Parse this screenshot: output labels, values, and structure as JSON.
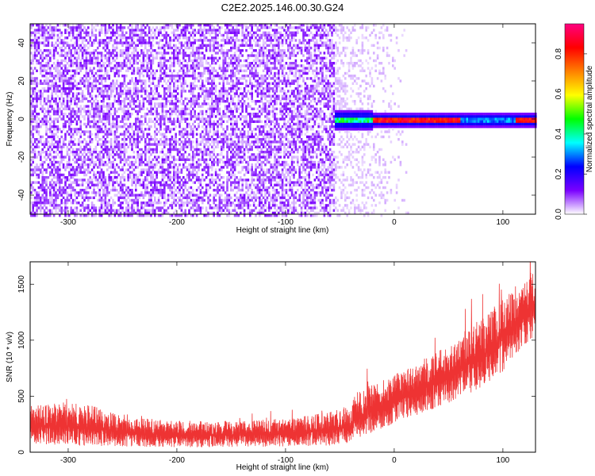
{
  "title": "C2E2.2025.146.00.30.G24",
  "chart_data": [
    {
      "type": "heatmap",
      "xlabel": "Height of straight line (km)",
      "ylabel": "Frequency (Hz)",
      "xlim": [
        -335,
        130
      ],
      "ylim": [
        -50,
        50
      ],
      "xticks": [
        -300,
        -200,
        -100,
        0,
        100
      ],
      "yticks": [
        -40,
        -20,
        0,
        20,
        40
      ],
      "colorbar": {
        "label": "Normalized spectral amplitude",
        "range": [
          0.0,
          0.95
        ],
        "ticks": [
          0.0,
          0.2,
          0.4,
          0.6,
          0.8
        ],
        "tick_labels": [
          "0.0",
          "0.2",
          "0.4",
          "0.6",
          "0.8"
        ],
        "colormap": [
          "#ffffff",
          "#7a00ff",
          "#0000ff",
          "#00ffff",
          "#00ff00",
          "#ffff00",
          "#ff8000",
          "#ff0000",
          "#ff0080"
        ]
      },
      "features": {
        "noise_region_x": [
          -335,
          -55
        ],
        "noise_amplitude": 0.08,
        "faint_region_x": [
          -55,
          15
        ],
        "signal_start_x": -55,
        "signal_freq": 0,
        "signal_amplitude": 0.9
      }
    },
    {
      "type": "line",
      "xlabel": "Height of straight line (km)",
      "ylabel": "SNR (10 * v/v)",
      "xlim": [
        -335,
        130
      ],
      "ylim": [
        0,
        1700
      ],
      "xticks": [
        -300,
        -200,
        -100,
        0,
        100
      ],
      "yticks": [
        0,
        500,
        1000,
        1500
      ],
      "color": "#ee3333",
      "envelope": {
        "x": [
          -335,
          -300,
          -270,
          -250,
          -200,
          -150,
          -100,
          -60,
          -40,
          -35,
          -20,
          0,
          20,
          40,
          60,
          80,
          100,
          110,
          120,
          130
        ],
        "low": [
          60,
          60,
          55,
          50,
          45,
          45,
          50,
          60,
          70,
          120,
          180,
          250,
          330,
          400,
          480,
          580,
          720,
          850,
          950,
          1050
        ],
        "high": [
          420,
          450,
          400,
          320,
          280,
          280,
          300,
          360,
          420,
          560,
          600,
          700,
          800,
          900,
          1050,
          1200,
          1380,
          1480,
          1560,
          1650
        ]
      }
    }
  ]
}
